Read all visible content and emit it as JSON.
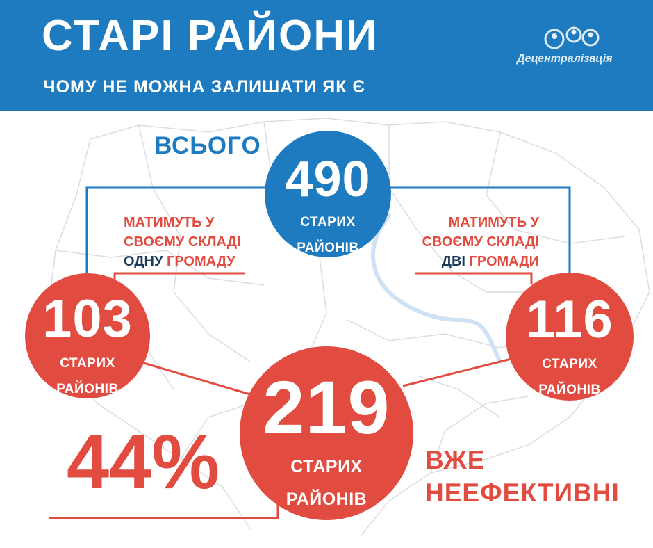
{
  "header": {
    "title": "СТАРІ РАЙОНИ",
    "subtitle": "ЧОМУ НЕ МОЖНА ЗАЛИШАТИ ЯК Є",
    "logo_text": "Децентралізація"
  },
  "total": {
    "label": "ВСЬОГО",
    "number": "490",
    "caption_line1": "СТАРИХ",
    "caption_line2": "РАЙОНІВ"
  },
  "one_community": {
    "note_line1": "МАТИМУТЬ У",
    "note_line2": "СВОЄМУ СКЛАДІ",
    "note_word_count": "ОДНУ",
    "note_word_unit": "ГРОМАДУ",
    "number": "103",
    "caption_line1": "СТАРИХ",
    "caption_line2": "РАЙОНІВ"
  },
  "two_communities": {
    "note_line1": "МАТИМУТЬ У",
    "note_line2": "СВОЄМУ СКЛАДІ",
    "note_word_count": "ДВІ",
    "note_word_unit": "ГРОМАДИ",
    "number": "116",
    "caption_line1": "СТАРИХ",
    "caption_line2": "РАЙОНІВ"
  },
  "inefficient": {
    "number": "219",
    "caption_line1": "СТАРИХ",
    "caption_line2": "РАЙОНІВ",
    "percent": "44%",
    "status_line1": "ВЖЕ",
    "status_line2": "НЕЕФЕКТИВНІ"
  },
  "colors": {
    "blue": "#1e7bc0",
    "red": "#e24b3f",
    "dark_text": "#1b3a5c",
    "map_lines": "#d9dde3",
    "river": "#cfe2f3"
  },
  "icons": {
    "logo": "decentralization-logo-icon",
    "background": "ukraine-map-outline"
  }
}
